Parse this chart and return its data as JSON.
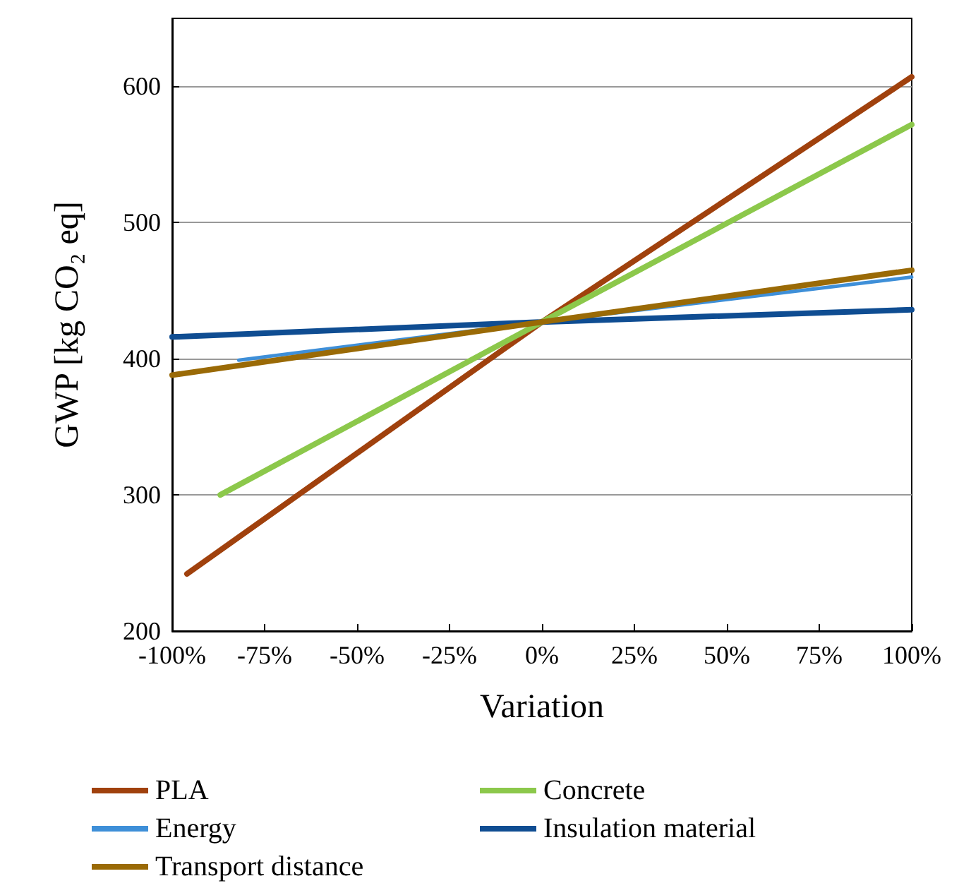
{
  "chart_data": {
    "type": "line",
    "xlabel": "Variation",
    "ylabel": "GWP [kg CO₂ eq]",
    "xlim": [
      -100,
      100
    ],
    "xticks": [
      {
        "value": -100,
        "label": "-100%"
      },
      {
        "value": -75,
        "label": "-75%"
      },
      {
        "value": -50,
        "label": "-50%"
      },
      {
        "value": -25,
        "label": "-25%"
      },
      {
        "value": 0,
        "label": "0%"
      },
      {
        "value": 25,
        "label": "25%"
      },
      {
        "value": 50,
        "label": "50%"
      },
      {
        "value": 75,
        "label": "75%"
      },
      {
        "value": 100,
        "label": "100%"
      }
    ],
    "ylim": [
      200,
      650
    ],
    "yticks": [
      200,
      300,
      400,
      500,
      600
    ],
    "grid": "y",
    "legend": "bottom",
    "marker": "none",
    "line_style": "solid",
    "series": [
      {
        "name": "PLA",
        "color": "#a0410d",
        "x": [
          -96,
          0,
          100
        ],
        "values": [
          242,
          427,
          607
        ]
      },
      {
        "name": "Concrete",
        "color": "#8cc84b",
        "x": [
          -87,
          0,
          100
        ],
        "values": [
          300,
          427,
          572
        ]
      },
      {
        "name": "Energy",
        "color": "#3e8fd8",
        "x": [
          -82,
          0,
          100
        ],
        "values": [
          399,
          427,
          460
        ]
      },
      {
        "name": "Insulation material",
        "color": "#0f4d92",
        "x": [
          -100,
          0,
          100
        ],
        "values": [
          416,
          427,
          436
        ]
      },
      {
        "name": "Transport distance",
        "color": "#9a6a06",
        "x": [
          -100,
          0,
          100
        ],
        "values": [
          388,
          427,
          465
        ]
      }
    ]
  }
}
